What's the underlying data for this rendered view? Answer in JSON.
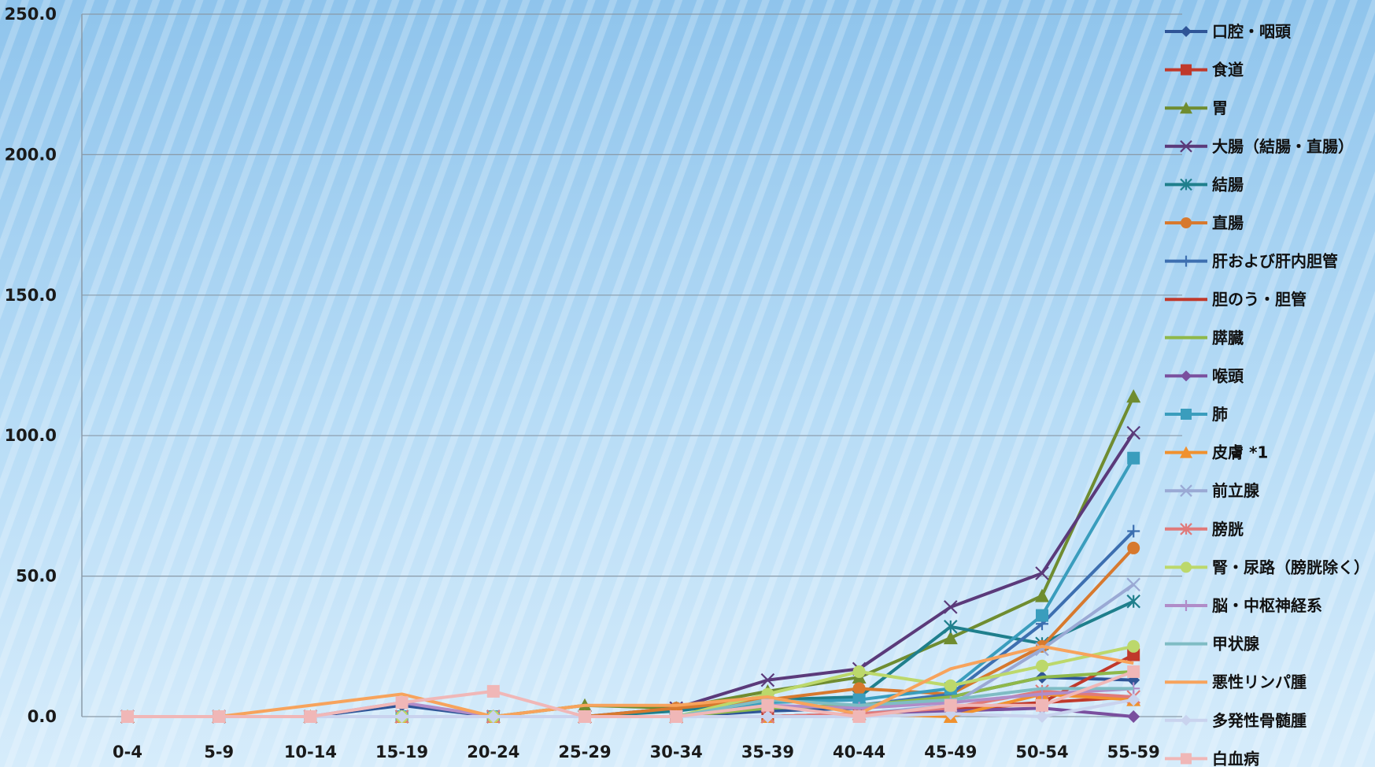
{
  "chart_data": {
    "type": "line",
    "title": "",
    "xlabel": "",
    "ylabel": "",
    "ylim": [
      0,
      250
    ],
    "yticks": [
      "0.0",
      "50.0",
      "100.0",
      "150.0",
      "200.0",
      "250.0"
    ],
    "ytick_values": [
      0,
      50,
      100,
      150,
      200,
      250
    ],
    "categories": [
      "0-4",
      "5-9",
      "10-14",
      "15-19",
      "20-24",
      "25-29",
      "30-34",
      "35-39",
      "40-44",
      "45-49",
      "50-54",
      "55-59"
    ],
    "grid": true,
    "legend_position": "right",
    "series": [
      {
        "name": "口腔・咽頭",
        "color": "#2f5597",
        "marker": "diamond",
        "values": [
          0,
          0,
          0,
          4,
          0,
          0,
          0,
          2,
          3,
          7,
          14,
          13
        ]
      },
      {
        "name": "食道",
        "color": "#c0392b",
        "marker": "square",
        "values": [
          0,
          0,
          0,
          0,
          0,
          0,
          0,
          0,
          1,
          3,
          5,
          22
        ]
      },
      {
        "name": "胃",
        "color": "#6f8c30",
        "marker": "triangle",
        "values": [
          0,
          0,
          0,
          0,
          0,
          4,
          3,
          9,
          14,
          28,
          43,
          114
        ]
      },
      {
        "name": "大腸（結腸・直腸）",
        "color": "#5b3a7a",
        "marker": "x",
        "values": [
          0,
          0,
          0,
          0,
          0,
          0,
          3,
          13,
          17,
          39,
          51,
          101
        ]
      },
      {
        "name": "結腸",
        "color": "#1f7f8c",
        "marker": "asterisk",
        "values": [
          0,
          0,
          0,
          0,
          0,
          0,
          2,
          6,
          7,
          32,
          26,
          41
        ]
      },
      {
        "name": "直腸",
        "color": "#d7792e",
        "marker": "circle",
        "values": [
          0,
          0,
          0,
          0,
          0,
          0,
          3,
          6,
          10,
          8,
          25,
          60
        ]
      },
      {
        "name": "肝および肝内胆管",
        "color": "#3d6fb0",
        "marker": "plus",
        "values": [
          0,
          0,
          0,
          0,
          0,
          0,
          0,
          3,
          4,
          8,
          33,
          66
        ]
      },
      {
        "name": "胆のう・胆管",
        "color": "#c0392b",
        "marker": "none",
        "values": [
          0,
          0,
          0,
          0,
          0,
          0,
          0,
          0,
          1,
          2,
          5,
          7
        ]
      },
      {
        "name": "膵臓",
        "color": "#8fb84a",
        "marker": "none",
        "values": [
          0,
          0,
          0,
          0,
          0,
          0,
          0,
          3,
          4,
          7,
          14,
          16
        ]
      },
      {
        "name": "喉頭",
        "color": "#7a4f9e",
        "marker": "diamond",
        "values": [
          0,
          0,
          0,
          0,
          0,
          0,
          0,
          0,
          1,
          2,
          3,
          0
        ]
      },
      {
        "name": "肺",
        "color": "#3a9dbd",
        "marker": "square",
        "values": [
          0,
          0,
          0,
          0,
          0,
          0,
          0,
          5,
          6,
          10,
          36,
          92
        ]
      },
      {
        "name": "皮膚 *1",
        "color": "#f0912e",
        "marker": "triangle",
        "values": [
          0,
          0,
          0,
          0,
          0,
          0,
          0,
          0,
          1,
          0,
          8,
          6
        ]
      },
      {
        "name": "前立腺",
        "color": "#9aa9d4",
        "marker": "x",
        "values": [
          0,
          0,
          0,
          0,
          0,
          0,
          0,
          0,
          1,
          4,
          24,
          47
        ]
      },
      {
        "name": "膀胱",
        "color": "#e07a7a",
        "marker": "asterisk",
        "values": [
          0,
          0,
          0,
          0,
          0,
          0,
          0,
          0,
          1,
          3,
          9,
          7
        ]
      },
      {
        "name": "腎・尿路（膀胱除く）",
        "color": "#bcd86b",
        "marker": "circle",
        "values": [
          0,
          0,
          0,
          0,
          0,
          0,
          0,
          8,
          16,
          11,
          18,
          25
        ]
      },
      {
        "name": "脳・中枢神経系",
        "color": "#b08cc8",
        "marker": "plus",
        "values": [
          0,
          0,
          0,
          5,
          0,
          0,
          0,
          4,
          3,
          5,
          8,
          10
        ]
      },
      {
        "name": "甲状腺",
        "color": "#7fbcc4",
        "marker": "none",
        "values": [
          0,
          0,
          0,
          0,
          0,
          0,
          0,
          6,
          4,
          6,
          10,
          10
        ]
      },
      {
        "name": "悪性リンパ腫",
        "color": "#f7a35c",
        "marker": "none",
        "values": [
          0,
          0,
          4,
          8,
          0,
          4,
          4,
          7,
          1,
          17,
          25,
          19
        ]
      },
      {
        "name": "多発性骨髄腫",
        "color": "#c9d3ee",
        "marker": "diamond",
        "values": [
          0,
          0,
          0,
          0,
          0,
          0,
          0,
          0,
          0,
          1,
          0,
          6
        ]
      },
      {
        "name": "白血病",
        "color": "#f0b7b7",
        "marker": "square",
        "values": [
          0,
          0,
          0,
          5,
          9,
          0,
          0,
          4,
          0,
          4,
          4,
          16
        ]
      }
    ]
  }
}
